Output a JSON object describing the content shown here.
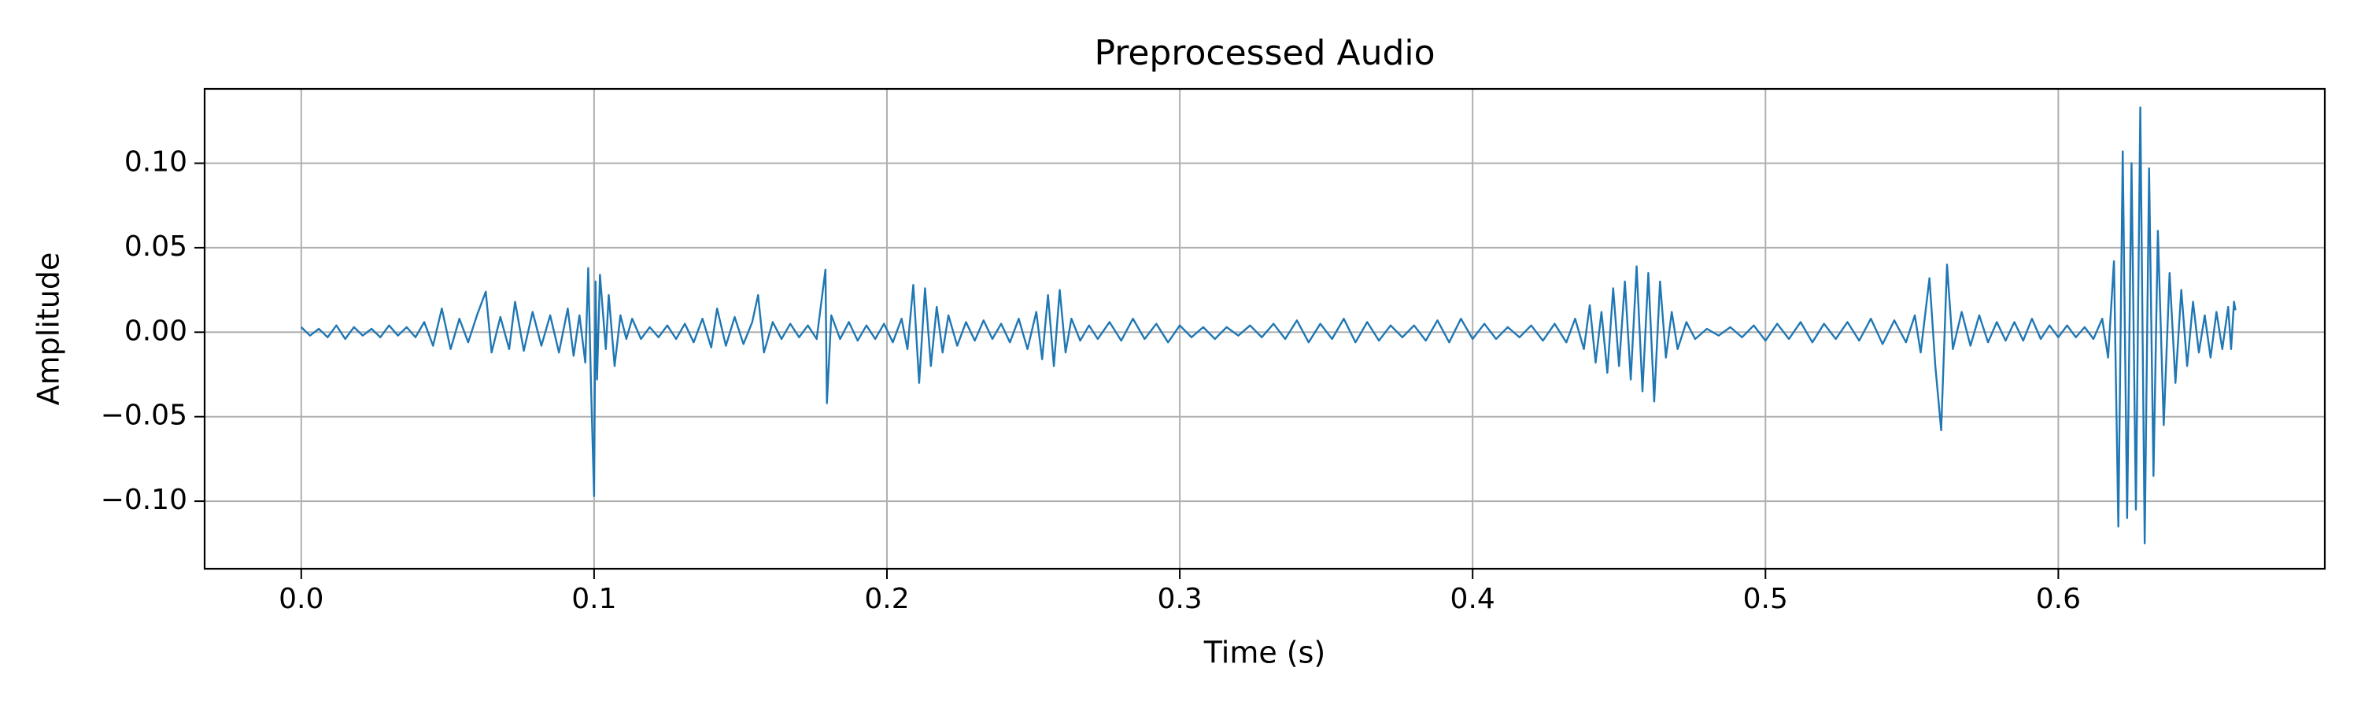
{
  "chart_data": {
    "type": "line",
    "title": "Preprocessed Audio",
    "xlabel": "Time (s)",
    "ylabel": "Amplitude",
    "color": "#1f77b4",
    "grid": true,
    "xlim": [
      -0.033,
      0.691
    ],
    "ylim": [
      -0.14,
      0.144
    ],
    "xticks": [
      {
        "value": 0,
        "label": "0.0"
      },
      0.1,
      0.2,
      0.3,
      0.4,
      0.5,
      0.6
    ],
    "yticks": [
      {
        "value": -0.1,
        "label": "−0.10"
      },
      {
        "value": -0.05,
        "label": "−0.05"
      },
      {
        "value": 0,
        "label": "0.00"
      },
      {
        "value": 0.05,
        "label": "0.05"
      },
      {
        "value": 0.1,
        "label": "0.10"
      }
    ],
    "x": [
      0,
      0.003,
      0.006,
      0.009,
      0.012,
      0.015,
      0.018,
      0.021,
      0.024,
      0.027,
      0.03,
      0.033,
      0.036,
      0.039,
      0.042,
      0.045,
      0.048,
      0.051,
      0.054,
      0.057,
      0.06,
      0.063,
      0.065,
      0.068,
      0.071,
      0.073,
      0.076,
      0.079,
      0.082,
      0.085,
      0.088,
      0.091,
      0.093,
      0.095,
      0.097,
      0.098,
      0.099,
      0.1,
      0.1005,
      0.101,
      0.102,
      0.104,
      0.105,
      0.107,
      0.109,
      0.111,
      0.113,
      0.116,
      0.119,
      0.122,
      0.125,
      0.128,
      0.131,
      0.134,
      0.137,
      0.14,
      0.142,
      0.145,
      0.148,
      0.151,
      0.154,
      0.156,
      0.158,
      0.161,
      0.164,
      0.167,
      0.17,
      0.173,
      0.176,
      0.179,
      0.1795,
      0.181,
      0.184,
      0.187,
      0.19,
      0.193,
      0.196,
      0.199,
      0.202,
      0.205,
      0.207,
      0.209,
      0.211,
      0.213,
      0.215,
      0.217,
      0.219,
      0.221,
      0.224,
      0.227,
      0.23,
      0.233,
      0.236,
      0.239,
      0.242,
      0.245,
      0.248,
      0.251,
      0.253,
      0.255,
      0.257,
      0.259,
      0.261,
      0.263,
      0.266,
      0.269,
      0.272,
      0.276,
      0.28,
      0.284,
      0.288,
      0.292,
      0.296,
      0.3,
      0.304,
      0.308,
      0.312,
      0.316,
      0.32,
      0.324,
      0.328,
      0.332,
      0.336,
      0.34,
      0.344,
      0.348,
      0.352,
      0.356,
      0.36,
      0.364,
      0.368,
      0.372,
      0.376,
      0.38,
      0.384,
      0.388,
      0.392,
      0.396,
      0.4,
      0.404,
      0.408,
      0.412,
      0.416,
      0.42,
      0.424,
      0.428,
      0.432,
      0.435,
      0.438,
      0.44,
      0.442,
      0.444,
      0.446,
      0.448,
      0.45,
      0.452,
      0.454,
      0.456,
      0.458,
      0.46,
      0.462,
      0.464,
      0.466,
      0.468,
      0.47,
      0.473,
      0.476,
      0.48,
      0.484,
      0.488,
      0.492,
      0.496,
      0.5,
      0.504,
      0.508,
      0.512,
      0.516,
      0.52,
      0.524,
      0.528,
      0.532,
      0.536,
      0.54,
      0.544,
      0.548,
      0.551,
      0.553,
      0.556,
      0.558,
      0.56,
      0.562,
      0.564,
      0.567,
      0.57,
      0.573,
      0.576,
      0.579,
      0.582,
      0.585,
      0.588,
      0.591,
      0.594,
      0.597,
      0.6,
      0.603,
      0.606,
      0.609,
      0.612,
      0.615,
      0.617,
      0.619,
      0.6205,
      0.622,
      0.6235,
      0.625,
      0.6265,
      0.628,
      0.6295,
      0.631,
      0.6325,
      0.634,
      0.636,
      0.638,
      0.64,
      0.642,
      0.644,
      0.646,
      0.648,
      0.65,
      0.652,
      0.654,
      0.656,
      0.658,
      0.659,
      0.66,
      0.6605
    ],
    "values": [
      0.003,
      -0.002,
      0.002,
      -0.003,
      0.004,
      -0.004,
      0.003,
      -0.002,
      0.002,
      -0.003,
      0.004,
      -0.002,
      0.003,
      -0.003,
      0.006,
      -0.008,
      0.014,
      -0.01,
      0.008,
      -0.006,
      0.01,
      0.024,
      -0.012,
      0.009,
      -0.01,
      0.018,
      -0.011,
      0.012,
      -0.008,
      0.01,
      -0.012,
      0.014,
      -0.014,
      0.01,
      -0.018,
      0.038,
      -0.035,
      -0.097,
      0.03,
      -0.028,
      0.034,
      -0.01,
      0.022,
      -0.02,
      0.01,
      -0.004,
      0.008,
      -0.004,
      0.003,
      -0.003,
      0.004,
      -0.004,
      0.005,
      -0.006,
      0.008,
      -0.009,
      0.014,
      -0.008,
      0.009,
      -0.007,
      0.006,
      0.022,
      -0.012,
      0.006,
      -0.004,
      0.005,
      -0.003,
      0.004,
      -0.004,
      0.037,
      -0.042,
      0.01,
      -0.004,
      0.006,
      -0.005,
      0.004,
      -0.004,
      0.005,
      -0.006,
      0.008,
      -0.01,
      0.028,
      -0.03,
      0.026,
      -0.02,
      0.015,
      -0.012,
      0.01,
      -0.008,
      0.006,
      -0.005,
      0.007,
      -0.004,
      0.005,
      -0.006,
      0.008,
      -0.01,
      0.012,
      -0.016,
      0.022,
      -0.02,
      0.025,
      -0.012,
      0.008,
      -0.005,
      0.004,
      -0.004,
      0.006,
      -0.005,
      0.008,
      -0.004,
      0.005,
      -0.006,
      0.004,
      -0.003,
      0.003,
      -0.004,
      0.003,
      -0.002,
      0.004,
      -0.003,
      0.005,
      -0.004,
      0.007,
      -0.006,
      0.005,
      -0.004,
      0.008,
      -0.006,
      0.006,
      -0.005,
      0.004,
      -0.003,
      0.004,
      -0.005,
      0.007,
      -0.006,
      0.008,
      -0.004,
      0.005,
      -0.004,
      0.003,
      -0.003,
      0.004,
      -0.005,
      0.005,
      -0.006,
      0.008,
      -0.01,
      0.016,
      -0.018,
      0.012,
      -0.024,
      0.026,
      -0.02,
      0.03,
      -0.028,
      0.039,
      -0.035,
      0.035,
      -0.041,
      0.03,
      -0.015,
      0.012,
      -0.01,
      0.006,
      -0.004,
      0.002,
      -0.002,
      0.003,
      -0.003,
      0.004,
      -0.005,
      0.005,
      -0.004,
      0.006,
      -0.006,
      0.005,
      -0.004,
      0.006,
      -0.005,
      0.008,
      -0.007,
      0.007,
      -0.006,
      0.01,
      -0.012,
      0.032,
      -0.02,
      -0.058,
      0.04,
      -0.01,
      0.012,
      -0.008,
      0.01,
      -0.006,
      0.006,
      -0.005,
      0.006,
      -0.005,
      0.008,
      -0.004,
      0.004,
      -0.003,
      0.004,
      -0.003,
      0.003,
      -0.004,
      0.008,
      -0.015,
      0.042,
      -0.115,
      0.107,
      -0.11,
      0.1,
      -0.105,
      0.133,
      -0.125,
      0.097,
      -0.085,
      0.06,
      -0.055,
      0.035,
      -0.03,
      0.025,
      -0.02,
      0.018,
      -0.012,
      0.01,
      -0.015,
      0.012,
      -0.01,
      0.015,
      -0.01,
      0.018,
      0.013
    ]
  }
}
